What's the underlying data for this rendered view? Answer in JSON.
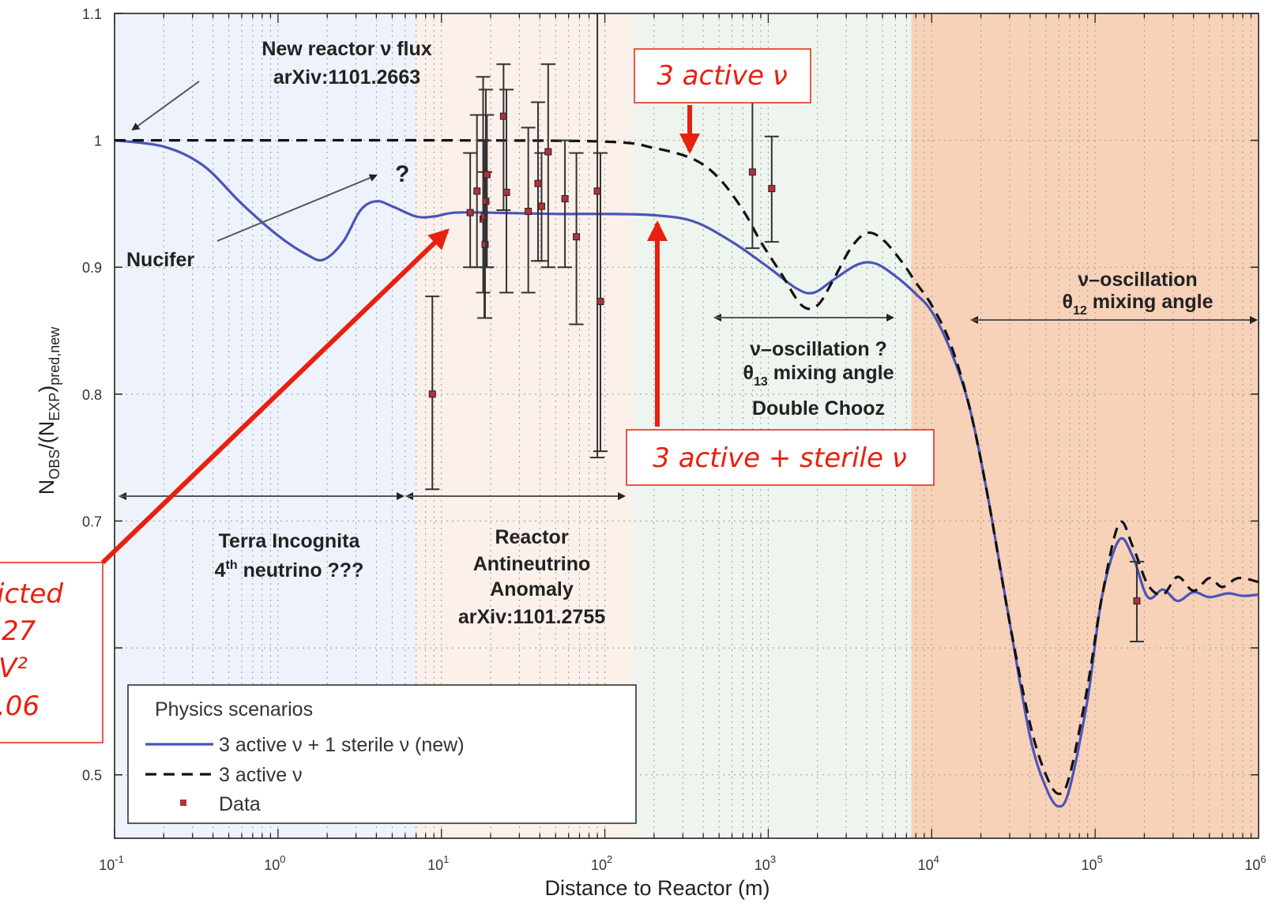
{
  "chart_data": {
    "type": "line",
    "xlabel": "Distance to Reactor (m)",
    "ylabel_main": "N",
    "ylabel_sub1": "OBS",
    "ylabel_mid": "/(N",
    "ylabel_sub2": "EXP",
    "ylabel_end": ")",
    "ylabel_sub3": "pred,new",
    "x_scale": "log",
    "xlim": [
      0.1,
      1000000
    ],
    "ylim": [
      0.45,
      1.1
    ],
    "grid": true,
    "x_ticks": [
      {
        "value": 0.1,
        "base": "10",
        "exp": "-1"
      },
      {
        "value": 1,
        "base": "10",
        "exp": "0"
      },
      {
        "value": 10,
        "base": "10",
        "exp": "1"
      },
      {
        "value": 100,
        "base": "10",
        "exp": "2"
      },
      {
        "value": 1000,
        "base": "10",
        "exp": "3"
      },
      {
        "value": 10000,
        "base": "10",
        "exp": "4"
      },
      {
        "value": 100000,
        "base": "10",
        "exp": "5"
      },
      {
        "value": 1000000,
        "base": "10",
        "exp": "6"
      }
    ],
    "y_ticks": [
      {
        "value": 0.5,
        "label": "0.5"
      },
      {
        "value": 0.6,
        "label": ""
      },
      {
        "value": 0.7,
        "label": "0.7"
      },
      {
        "value": 0.8,
        "label": "0.8"
      },
      {
        "value": 0.9,
        "label": "0.9"
      },
      {
        "value": 1.0,
        "label": "1"
      },
      {
        "value": 1.1,
        "label": "1.1"
      }
    ],
    "regions": [
      {
        "from": 0.1,
        "to": 7,
        "color": "#eef2fb"
      },
      {
        "from": 7,
        "to": 150,
        "color": "#fbf0ea"
      },
      {
        "from": 150,
        "to": 7500,
        "color": "#eef5ee"
      },
      {
        "from": 7500,
        "to": 1000000,
        "color": "#f8d2b8"
      }
    ],
    "series": [
      {
        "name": "3 active ν + 1 sterile ν (new)",
        "color": "#4a55b8",
        "style": "solid",
        "points": [
          [
            0.1,
            1.0
          ],
          [
            0.2,
            0.995
          ],
          [
            0.35,
            0.98
          ],
          [
            0.6,
            0.95
          ],
          [
            1.0,
            0.925
          ],
          [
            1.5,
            0.91
          ],
          [
            1.9,
            0.906
          ],
          [
            2.5,
            0.92
          ],
          [
            3.2,
            0.945
          ],
          [
            4.0,
            0.952
          ],
          [
            5.0,
            0.948
          ],
          [
            7.0,
            0.94
          ],
          [
            9.0,
            0.94
          ],
          [
            12.0,
            0.943
          ],
          [
            20,
            0.943
          ],
          [
            50,
            0.942
          ],
          [
            100,
            0.942
          ],
          [
            200,
            0.941
          ],
          [
            350,
            0.936
          ],
          [
            600,
            0.92
          ],
          [
            1000,
            0.9
          ],
          [
            1500,
            0.883
          ],
          [
            1900,
            0.88
          ],
          [
            2500,
            0.89
          ],
          [
            3500,
            0.902
          ],
          [
            4500,
            0.903
          ],
          [
            6000,
            0.893
          ],
          [
            8000,
            0.879
          ],
          [
            10000,
            0.865
          ],
          [
            13000,
            0.835
          ],
          [
            17000,
            0.79
          ],
          [
            22000,
            0.72
          ],
          [
            30000,
            0.62
          ],
          [
            40000,
            0.53
          ],
          [
            50000,
            0.49
          ],
          [
            60000,
            0.475
          ],
          [
            70000,
            0.49
          ],
          [
            90000,
            0.56
          ],
          [
            110000,
            0.64
          ],
          [
            140000,
            0.685
          ],
          [
            170000,
            0.672
          ],
          [
            210000,
            0.64
          ],
          [
            260000,
            0.646
          ],
          [
            320000,
            0.637
          ],
          [
            400000,
            0.644
          ],
          [
            500000,
            0.64
          ],
          [
            650000,
            0.643
          ],
          [
            800000,
            0.641
          ],
          [
            1000000,
            0.642
          ]
        ]
      },
      {
        "name": "3 active ν",
        "color": "#111111",
        "style": "dashed",
        "points": [
          [
            0.1,
            1.0
          ],
          [
            1,
            1.0
          ],
          [
            10,
            1.0
          ],
          [
            100,
            0.999
          ],
          [
            200,
            0.994
          ],
          [
            350,
            0.985
          ],
          [
            500,
            0.97
          ],
          [
            700,
            0.945
          ],
          [
            900,
            0.92
          ],
          [
            1200,
            0.895
          ],
          [
            1600,
            0.87
          ],
          [
            2000,
            0.87
          ],
          [
            2500,
            0.89
          ],
          [
            3200,
            0.915
          ],
          [
            4000,
            0.927
          ],
          [
            5000,
            0.922
          ],
          [
            6500,
            0.905
          ],
          [
            8000,
            0.888
          ],
          [
            10000,
            0.87
          ],
          [
            13000,
            0.84
          ],
          [
            17000,
            0.79
          ],
          [
            22000,
            0.72
          ],
          [
            30000,
            0.62
          ],
          [
            40000,
            0.54
          ],
          [
            50000,
            0.5
          ],
          [
            60000,
            0.485
          ],
          [
            70000,
            0.5
          ],
          [
            90000,
            0.57
          ],
          [
            110000,
            0.64
          ],
          [
            140000,
            0.698
          ],
          [
            170000,
            0.68
          ],
          [
            210000,
            0.65
          ],
          [
            260000,
            0.642
          ],
          [
            320000,
            0.656
          ],
          [
            400000,
            0.645
          ],
          [
            500000,
            0.655
          ],
          [
            600000,
            0.648
          ],
          [
            750000,
            0.655
          ],
          [
            1000000,
            0.652
          ]
        ]
      }
    ],
    "data_points": [
      {
        "x": 8.8,
        "y": 0.8,
        "lo": 0.725,
        "hi": 0.877
      },
      {
        "x": 15,
        "y": 0.943,
        "lo": 0.9,
        "hi": 0.99
      },
      {
        "x": 16.5,
        "y": 0.96,
        "lo": 0.9,
        "hi": 1.02
      },
      {
        "x": 18,
        "y": 0.938,
        "lo": 0.88,
        "hi": 1.05
      },
      {
        "x": 18.3,
        "y": 0.94,
        "lo": 0.86,
        "hi": 1.0
      },
      {
        "x": 18.5,
        "y": 0.918,
        "lo": 0.86,
        "hi": 0.975
      },
      {
        "x": 18.7,
        "y": 0.952,
        "lo": 0.9,
        "hi": 1.04
      },
      {
        "x": 19,
        "y": 0.973,
        "lo": 0.9,
        "hi": 1.02
      },
      {
        "x": 24,
        "y": 1.019,
        "lo": 0.945,
        "hi": 1.06
      },
      {
        "x": 25,
        "y": 0.959,
        "lo": 0.88,
        "hi": 1.04
      },
      {
        "x": 34,
        "y": 0.944,
        "lo": 0.88,
        "hi": 1.01
      },
      {
        "x": 39,
        "y": 0.966,
        "lo": 0.905,
        "hi": 1.03
      },
      {
        "x": 41,
        "y": 0.948,
        "lo": 0.905,
        "hi": 0.99
      },
      {
        "x": 45,
        "y": 0.991,
        "lo": 0.9,
        "hi": 1.06
      },
      {
        "x": 57,
        "y": 0.954,
        "lo": 0.9,
        "hi": 1.0
      },
      {
        "x": 67,
        "y": 0.924,
        "lo": 0.855,
        "hi": 0.99
      },
      {
        "x": 90,
        "y": 0.96,
        "lo": 0.75,
        "hi": 1.1
      },
      {
        "x": 94,
        "y": 0.873,
        "lo": 0.755,
        "hi": 0.99
      },
      {
        "x": 800,
        "y": 0.975,
        "lo": 0.915,
        "hi": 1.04
      },
      {
        "x": 1050,
        "y": 0.962,
        "lo": 0.92,
        "hi": 1.003
      },
      {
        "x": 180000,
        "y": 0.637,
        "lo": 0.605,
        "hi": 0.668
      }
    ],
    "data_color": "#b5303c",
    "legend": {
      "title": "Physics scenarios",
      "placement": "bottom-left",
      "entries": [
        {
          "label": "3 active ν + 1 sterile ν (new)",
          "kind": "solid",
          "color": "#4a55b8"
        },
        {
          "label": "3 active  ν",
          "kind": "dashed",
          "color": "#111111"
        },
        {
          "label": "Data",
          "kind": "marker",
          "color": "#b5303c"
        }
      ]
    },
    "annotations": {
      "new_flux_line1": "New reactor ν flux",
      "new_flux_line2": "arXiv:1101.2663",
      "question_mark": "?",
      "nucifer": "Nucifer",
      "terra_line1": "Terra Incognita",
      "terra_line2a": "4",
      "terra_line2sup": "th",
      "terra_line2b": " neutrino ???",
      "raa_line1": "Reactor",
      "raa_line2": "Antineutrino",
      "raa_line3": "Anomaly",
      "raa_line4": "arXiv:1101.2755",
      "osc13_line1": "ν–oscillation ?",
      "osc13_theta": "θ",
      "osc13_sub": "13",
      "osc13_rest": " mixing angle",
      "osc13_line3": "Double Chooz",
      "osc12_line1": "ν–oscillation",
      "osc12_theta": "θ",
      "osc12_sub": "12",
      "osc12_rest": " mixing angle"
    },
    "callouts": {
      "three_active": "3 active ν",
      "three_active_sterile": "3 active + sterile ν",
      "predicted_line1": "icted",
      "predicted_line2": "27",
      "predicted_line3": "V²",
      "predicted_line4": ".06"
    }
  }
}
